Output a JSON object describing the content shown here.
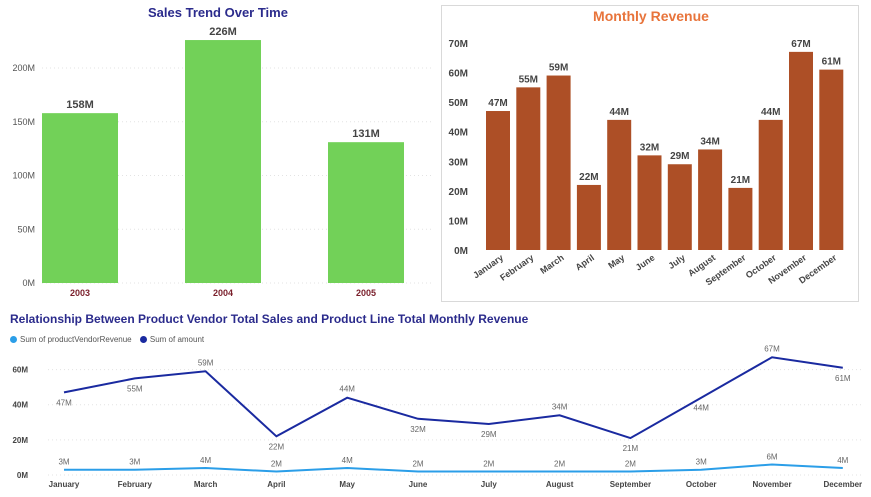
{
  "colors": {
    "bar_green": "#72d158",
    "bar_brown": "#ad4f26",
    "line_dark": "#1a2aa0",
    "line_light": "#2b9ee8",
    "title_blue": "#2b2b8c",
    "title_orange": "#e8743b",
    "axis_red": "#7a1f2b"
  },
  "chart_data": [
    {
      "type": "bar",
      "title": "Sales Trend Over Time",
      "categories": [
        "2003",
        "2004",
        "2005"
      ],
      "values": [
        158,
        226,
        131
      ],
      "value_labels": [
        "158M",
        "226M",
        "131M"
      ],
      "yticks": [
        "0M",
        "50M",
        "100M",
        "150M",
        "200M"
      ],
      "ylim": [
        0,
        240
      ],
      "unit": "M"
    },
    {
      "type": "bar",
      "title": "Monthly Revenue",
      "categories": [
        "January",
        "February",
        "March",
        "April",
        "May",
        "June",
        "July",
        "August",
        "September",
        "October",
        "November",
        "December"
      ],
      "values": [
        47,
        55,
        59,
        22,
        44,
        32,
        29,
        34,
        21,
        44,
        67,
        61
      ],
      "value_labels": [
        "47M",
        "55M",
        "59M",
        "22M",
        "44M",
        "32M",
        "29M",
        "34M",
        "21M",
        "44M",
        "67M",
        "61M"
      ],
      "yticks": [
        "0M",
        "10M",
        "20M",
        "30M",
        "40M",
        "50M",
        "60M",
        "70M"
      ],
      "ylim": [
        0,
        70
      ],
      "unit": "M"
    },
    {
      "type": "line",
      "title": "Relationship Between Product Vendor Total Sales and Product Line Total Monthly Revenue",
      "categories": [
        "January",
        "February",
        "March",
        "April",
        "May",
        "June",
        "July",
        "August",
        "September",
        "October",
        "November",
        "December"
      ],
      "yticks": [
        "0M",
        "20M",
        "40M",
        "60M"
      ],
      "ylim": [
        0,
        70
      ],
      "legend_position": "top-left",
      "series": [
        {
          "name": "Sum of productVendorRevenue",
          "values": [
            3,
            3,
            4,
            2,
            4,
            2,
            2,
            2,
            2,
            3,
            6,
            4
          ],
          "labels": [
            "3M",
            "3M",
            "4M",
            "2M",
            "4M",
            "2M",
            "2M",
            "2M",
            "2M",
            "3M",
            "6M",
            "4M"
          ]
        },
        {
          "name": "Sum of amount",
          "values": [
            47,
            55,
            59,
            22,
            44,
            32,
            29,
            34,
            21,
            44,
            67,
            61
          ],
          "labels": [
            "47M",
            "55M",
            "59M",
            "22M",
            "44M",
            "32M",
            "29M",
            "34M",
            "21M",
            "44M",
            "67M",
            "61M"
          ]
        }
      ]
    }
  ]
}
